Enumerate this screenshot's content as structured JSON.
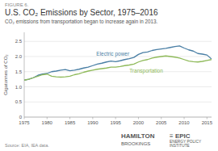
{
  "chart_data": {
    "type": "line",
    "kicker": "FIGURE 6.",
    "title": "U.S. CO₂ Emissions by Sector, 1975–2016",
    "subtitle": "CO₂ emissions from transportation began to increase again in 2013.",
    "y_label": "Gigatonnes of CO₂",
    "source": "Source: EIA, IEA data.",
    "annotations": [
      "HAMILTON",
      "BROOKINGS",
      "≡ EPIC",
      "ENERGY POLICY\nINSTITUTE"
    ],
    "x": [
      1975,
      1976,
      1977,
      1978,
      1979,
      1980,
      1981,
      1982,
      1983,
      1984,
      1985,
      1986,
      1987,
      1988,
      1989,
      1990,
      1991,
      1992,
      1993,
      1994,
      1995,
      1996,
      1997,
      1998,
      1999,
      2000,
      2001,
      2002,
      2003,
      2004,
      2005,
      2006,
      2007,
      2008,
      2009,
      2010,
      2011,
      2012,
      2013,
      2014,
      2015,
      2016
    ],
    "series": [
      {
        "name": "Electric power",
        "color": "#4a7fa5",
        "values": [
          1.22,
          1.25,
          1.3,
          1.38,
          1.42,
          1.44,
          1.5,
          1.52,
          1.55,
          1.57,
          1.53,
          1.55,
          1.58,
          1.62,
          1.65,
          1.7,
          1.75,
          1.78,
          1.82,
          1.85,
          1.83,
          1.86,
          1.9,
          1.93,
          1.97,
          2.07,
          2.13,
          2.15,
          2.2,
          2.23,
          2.25,
          2.27,
          2.3,
          2.33,
          2.35,
          2.28,
          2.22,
          2.18,
          2.1,
          2.08,
          2.05,
          1.92
        ]
      },
      {
        "name": "Transportation",
        "color": "#8fba5a",
        "values": [
          1.22,
          1.25,
          1.3,
          1.35,
          1.4,
          1.42,
          1.35,
          1.33,
          1.32,
          1.33,
          1.35,
          1.4,
          1.43,
          1.48,
          1.52,
          1.55,
          1.58,
          1.6,
          1.62,
          1.65,
          1.65,
          1.67,
          1.7,
          1.72,
          1.75,
          1.82,
          1.87,
          1.9,
          1.95,
          1.98,
          2.0,
          2.02,
          2.0,
          1.98,
          1.95,
          1.9,
          1.85,
          1.83,
          1.82,
          1.84,
          1.87,
          1.9
        ]
      }
    ],
    "xlim": [
      1975,
      2016
    ],
    "ylim": [
      0,
      2.8
    ],
    "xticks": [
      1975,
      1980,
      1985,
      1990,
      1995,
      2000,
      2005,
      2010,
      2015
    ],
    "yticks": [
      0,
      0.5,
      {
        "value": 1.0,
        "label": "1.0"
      },
      1.5,
      {
        "value": 2.0,
        "label": "2.0"
      },
      2.5
    ],
    "grid": true
  }
}
